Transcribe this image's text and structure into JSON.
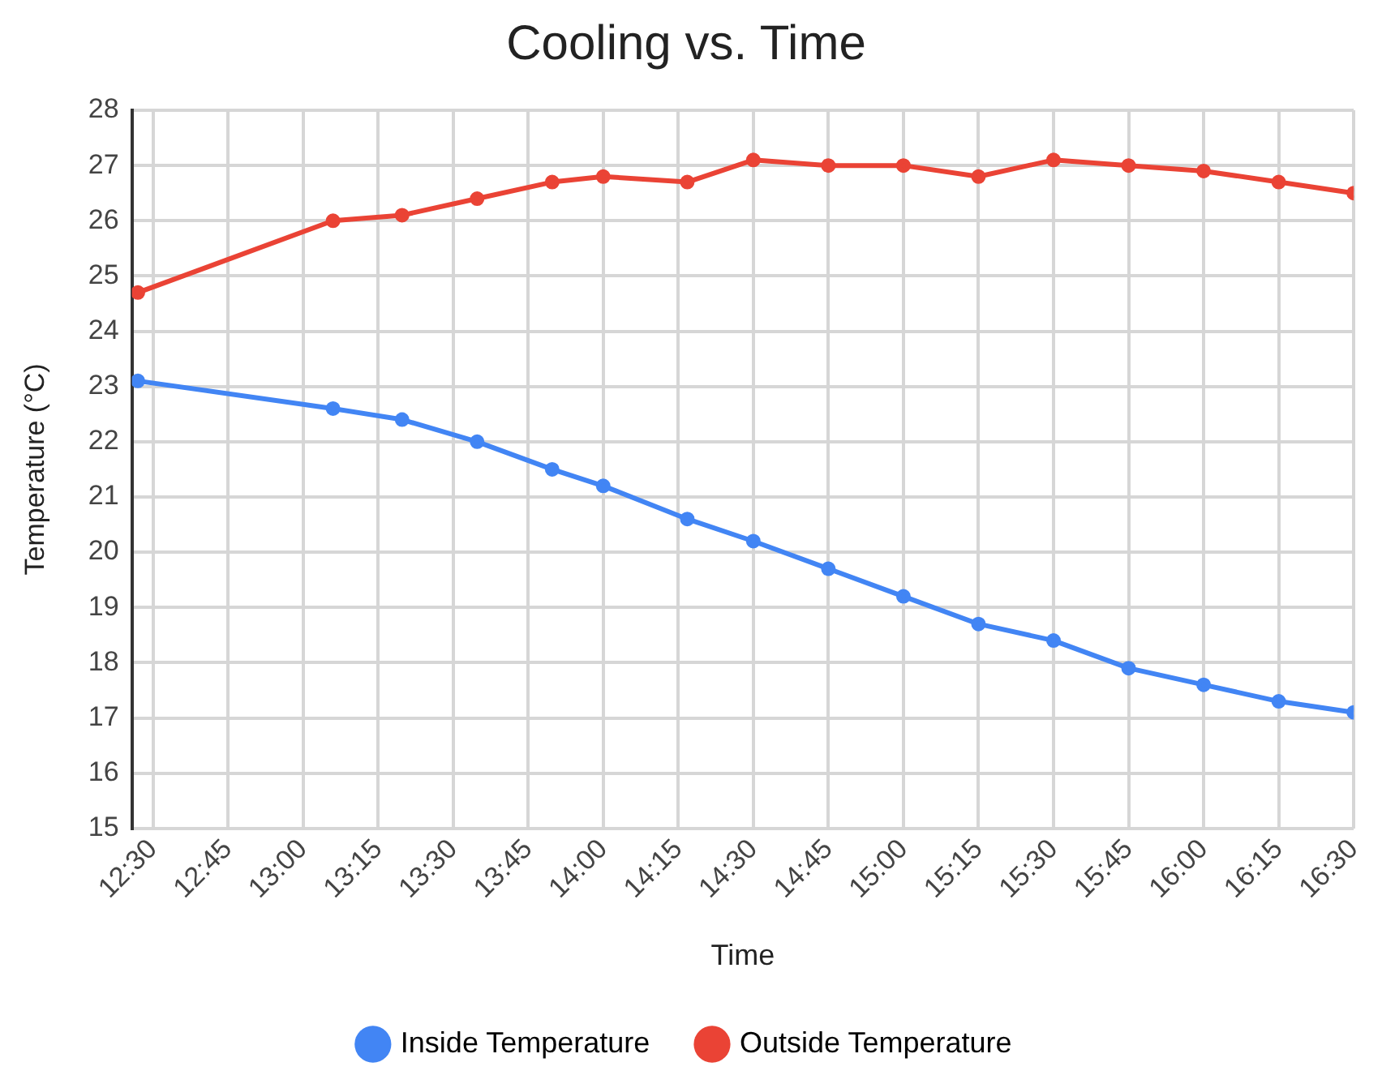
{
  "chart_data": {
    "type": "line",
    "title": "Cooling vs. Time",
    "xlabel": "Time",
    "ylabel": "Temperature (°C)",
    "x": [
      12.45,
      13.1,
      13.33,
      13.58,
      13.83,
      14.0,
      14.28,
      14.5,
      14.75,
      15.0,
      15.25,
      15.5,
      15.75,
      16.0,
      16.25,
      16.5
    ],
    "series": [
      {
        "name": "Inside Temperature",
        "color": "#4285f4",
        "values": [
          23.1,
          22.6,
          22.4,
          22.0,
          21.5,
          21.2,
          20.6,
          20.2,
          19.7,
          19.2,
          18.7,
          18.4,
          17.9,
          17.6,
          17.3,
          17.1
        ]
      },
      {
        "name": "Outside Temperature",
        "color": "#ea4335",
        "values": [
          24.7,
          26.0,
          26.1,
          26.4,
          26.7,
          26.8,
          26.7,
          27.1,
          27.0,
          27.0,
          26.8,
          27.1,
          27.0,
          26.9,
          26.7,
          26.5
        ]
      }
    ],
    "xlim": [
      12.43,
      16.5
    ],
    "xticks": [
      {
        "value": 12.5,
        "label": "12:30"
      },
      {
        "value": 12.75,
        "label": "12:45"
      },
      {
        "value": 13,
        "label": "13:00"
      },
      {
        "value": 13.25,
        "label": "13:15"
      },
      {
        "value": 13.5,
        "label": "13:30"
      },
      {
        "value": 13.75,
        "label": "13:45"
      },
      {
        "value": 14,
        "label": "14:00"
      },
      {
        "value": 14.25,
        "label": "14:15"
      },
      {
        "value": 14.5,
        "label": "14:30"
      },
      {
        "value": 14.75,
        "label": "14:45"
      },
      {
        "value": 15,
        "label": "15:00"
      },
      {
        "value": 15.25,
        "label": "15:15"
      },
      {
        "value": 15.5,
        "label": "15:30"
      },
      {
        "value": 15.75,
        "label": "15:45"
      },
      {
        "value": 16,
        "label": "16:00"
      },
      {
        "value": 16.25,
        "label": "16:15"
      },
      {
        "value": 16.5,
        "label": "16:30"
      }
    ],
    "ylim": [
      15,
      28
    ],
    "yticks": [
      15,
      16,
      17,
      18,
      19,
      20,
      21,
      22,
      23,
      24,
      25,
      26,
      27,
      28
    ],
    "grid": true,
    "legend": "bottom",
    "marker": "circle",
    "line_style": "solid"
  }
}
